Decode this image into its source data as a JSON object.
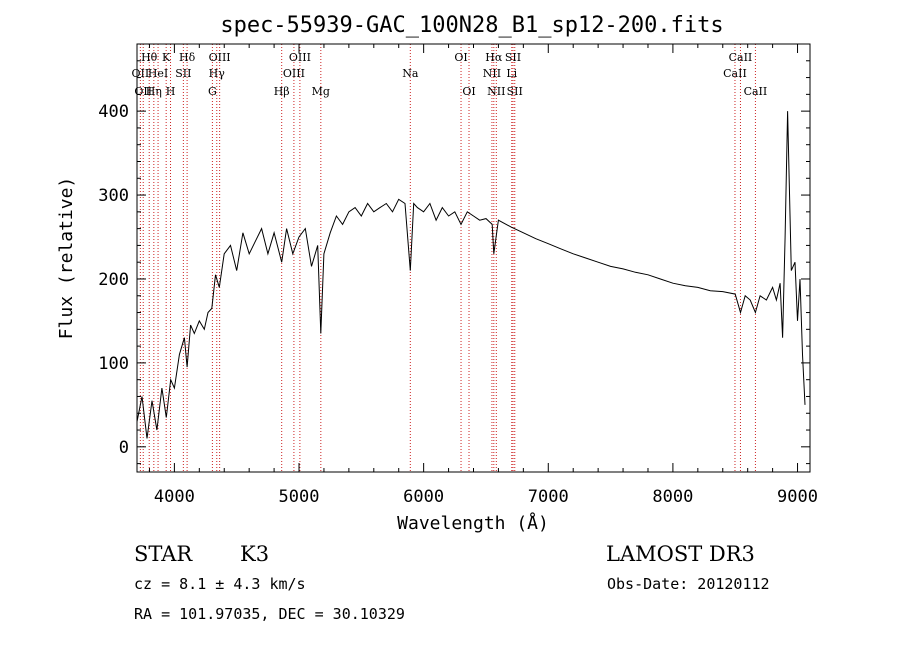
{
  "chart_data": {
    "type": "line",
    "title": "spec-55939-GAC_100N28_B1_sp12-200.fits",
    "xlabel": "Wavelength (Å)",
    "ylabel": "Flux (relative)",
    "xlim": [
      3700,
      9100
    ],
    "ylim": [
      -30,
      480
    ],
    "xticks": [
      4000,
      5000,
      6000,
      7000,
      8000,
      9000
    ],
    "yticks": [
      0,
      100,
      200,
      300,
      400
    ],
    "series": [
      {
        "name": "spectrum",
        "x": [
          3700,
          3740,
          3780,
          3820,
          3860,
          3900,
          3935,
          3970,
          4000,
          4040,
          4080,
          4102,
          4130,
          4160,
          4200,
          4240,
          4270,
          4300,
          4330,
          4360,
          4400,
          4450,
          4500,
          4550,
          4600,
          4650,
          4700,
          4750,
          4800,
          4861,
          4900,
          4950,
          5000,
          5050,
          5100,
          5150,
          5175,
          5200,
          5250,
          5300,
          5350,
          5400,
          5450,
          5500,
          5550,
          5600,
          5650,
          5700,
          5750,
          5800,
          5850,
          5893,
          5920,
          5950,
          6000,
          6050,
          6100,
          6150,
          6200,
          6250,
          6300,
          6350,
          6400,
          6450,
          6500,
          6550,
          6563,
          6600,
          6700,
          6800,
          6900,
          7000,
          7100,
          7200,
          7300,
          7400,
          7500,
          7600,
          7700,
          7800,
          7900,
          8000,
          8100,
          8200,
          8300,
          8400,
          8500,
          8542,
          8580,
          8620,
          8662,
          8700,
          8750,
          8800,
          8830,
          8860,
          8880,
          8900,
          8920,
          8950,
          8980,
          9000,
          9020,
          9040,
          9060
        ],
        "values": [
          30,
          60,
          10,
          55,
          20,
          70,
          35,
          80,
          70,
          110,
          130,
          95,
          145,
          135,
          150,
          140,
          160,
          165,
          205,
          190,
          230,
          240,
          210,
          255,
          230,
          245,
          260,
          230,
          255,
          220,
          260,
          230,
          250,
          260,
          215,
          240,
          135,
          230,
          255,
          275,
          265,
          280,
          285,
          275,
          290,
          280,
          285,
          290,
          280,
          295,
          290,
          210,
          290,
          285,
          280,
          290,
          270,
          285,
          275,
          280,
          265,
          280,
          275,
          270,
          272,
          265,
          230,
          270,
          262,
          255,
          248,
          242,
          236,
          230,
          225,
          220,
          215,
          212,
          208,
          205,
          200,
          195,
          192,
          190,
          186,
          185,
          182,
          160,
          180,
          175,
          160,
          180,
          175,
          190,
          175,
          195,
          130,
          250,
          400,
          210,
          220,
          150,
          200,
          110,
          50
        ]
      }
    ],
    "line_marks": [
      {
        "wl": 3727,
        "label": "OII",
        "row": 2
      },
      {
        "wl": 3750,
        "label": "OII",
        "row": 3
      },
      {
        "wl": 3798,
        "label": "Hθ",
        "row": 1
      },
      {
        "wl": 3835,
        "label": "Hη",
        "row": 3
      },
      {
        "wl": 3869,
        "label": "HeI",
        "row": 2
      },
      {
        "wl": 3934,
        "label": "K",
        "row": 1
      },
      {
        "wl": 3969,
        "label": "H",
        "row": 3
      },
      {
        "wl": 4072,
        "label": "SII",
        "row": 2
      },
      {
        "wl": 4102,
        "label": "Hδ",
        "row": 1
      },
      {
        "wl": 4305,
        "label": "G",
        "row": 3
      },
      {
        "wl": 4340,
        "label": "Hγ",
        "row": 2
      },
      {
        "wl": 4363,
        "label": "OIII",
        "row": 1
      },
      {
        "wl": 4861,
        "label": "Hβ",
        "row": 3
      },
      {
        "wl": 4959,
        "label": "OIII",
        "row": 2
      },
      {
        "wl": 5007,
        "label": "OIII",
        "row": 1
      },
      {
        "wl": 5175,
        "label": "Mg",
        "row": 3
      },
      {
        "wl": 5893,
        "label": "Na",
        "row": 2
      },
      {
        "wl": 6300,
        "label": "OI",
        "row": 1
      },
      {
        "wl": 6364,
        "label": "OI",
        "row": 3
      },
      {
        "wl": 6548,
        "label": "NII",
        "row": 2
      },
      {
        "wl": 6563,
        "label": "Hα",
        "row": 1
      },
      {
        "wl": 6583,
        "label": "NII",
        "row": 3
      },
      {
        "wl": 6707,
        "label": "Li",
        "row": 2
      },
      {
        "wl": 6717,
        "label": "SII",
        "row": 1
      },
      {
        "wl": 6731,
        "label": "SII",
        "row": 3
      },
      {
        "wl": 8498,
        "label": "CaII",
        "row": 2
      },
      {
        "wl": 8542,
        "label": "CaII",
        "row": 1
      },
      {
        "wl": 8662,
        "label": "CaII",
        "row": 3
      }
    ]
  },
  "info": {
    "class": "STAR",
    "subclass": "K3",
    "survey": "LAMOST DR3",
    "cz": "cz = 8.1 ± 4.3 km/s",
    "obs_date": "Obs-Date: 20120112",
    "coords": "RA = 101.97035, DEC =  30.10329"
  },
  "colors": {
    "spectrum": "#000000",
    "marker": "#cc2222"
  }
}
